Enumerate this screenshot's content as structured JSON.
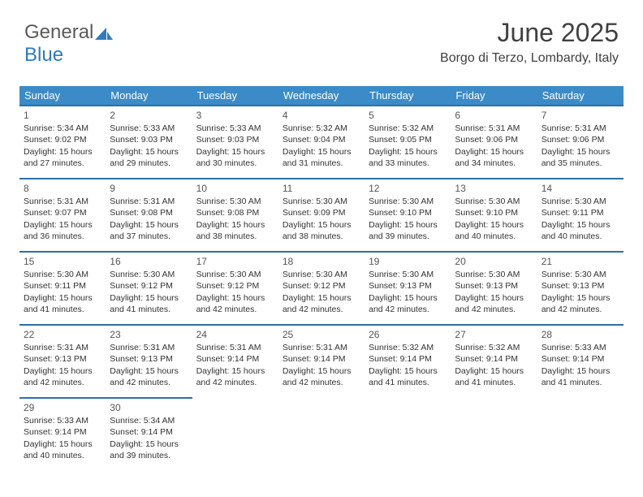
{
  "logo": {
    "part1": "General",
    "part2": "Blue"
  },
  "title": "June 2025",
  "location": "Borgo di Terzo, Lombardy, Italy",
  "colors": {
    "header_bg": "#3b8bc9",
    "header_text": "#ffffff",
    "row_border": "#2f6fa3",
    "text": "#333333",
    "logo_gray": "#5a5a5a",
    "logo_blue": "#2f7bbf",
    "background": "#ffffff"
  },
  "days_of_week": [
    "Sunday",
    "Monday",
    "Tuesday",
    "Wednesday",
    "Thursday",
    "Friday",
    "Saturday"
  ],
  "entries": {
    "1": {
      "sunrise": "5:34 AM",
      "sunset": "9:02 PM",
      "dl1": "Daylight: 15 hours",
      "dl2": "and 27 minutes."
    },
    "2": {
      "sunrise": "5:33 AM",
      "sunset": "9:03 PM",
      "dl1": "Daylight: 15 hours",
      "dl2": "and 29 minutes."
    },
    "3": {
      "sunrise": "5:33 AM",
      "sunset": "9:03 PM",
      "dl1": "Daylight: 15 hours",
      "dl2": "and 30 minutes."
    },
    "4": {
      "sunrise": "5:32 AM",
      "sunset": "9:04 PM",
      "dl1": "Daylight: 15 hours",
      "dl2": "and 31 minutes."
    },
    "5": {
      "sunrise": "5:32 AM",
      "sunset": "9:05 PM",
      "dl1": "Daylight: 15 hours",
      "dl2": "and 33 minutes."
    },
    "6": {
      "sunrise": "5:31 AM",
      "sunset": "9:06 PM",
      "dl1": "Daylight: 15 hours",
      "dl2": "and 34 minutes."
    },
    "7": {
      "sunrise": "5:31 AM",
      "sunset": "9:06 PM",
      "dl1": "Daylight: 15 hours",
      "dl2": "and 35 minutes."
    },
    "8": {
      "sunrise": "5:31 AM",
      "sunset": "9:07 PM",
      "dl1": "Daylight: 15 hours",
      "dl2": "and 36 minutes."
    },
    "9": {
      "sunrise": "5:31 AM",
      "sunset": "9:08 PM",
      "dl1": "Daylight: 15 hours",
      "dl2": "and 37 minutes."
    },
    "10": {
      "sunrise": "5:30 AM",
      "sunset": "9:08 PM",
      "dl1": "Daylight: 15 hours",
      "dl2": "and 38 minutes."
    },
    "11": {
      "sunrise": "5:30 AM",
      "sunset": "9:09 PM",
      "dl1": "Daylight: 15 hours",
      "dl2": "and 38 minutes."
    },
    "12": {
      "sunrise": "5:30 AM",
      "sunset": "9:10 PM",
      "dl1": "Daylight: 15 hours",
      "dl2": "and 39 minutes."
    },
    "13": {
      "sunrise": "5:30 AM",
      "sunset": "9:10 PM",
      "dl1": "Daylight: 15 hours",
      "dl2": "and 40 minutes."
    },
    "14": {
      "sunrise": "5:30 AM",
      "sunset": "9:11 PM",
      "dl1": "Daylight: 15 hours",
      "dl2": "and 40 minutes."
    },
    "15": {
      "sunrise": "5:30 AM",
      "sunset": "9:11 PM",
      "dl1": "Daylight: 15 hours",
      "dl2": "and 41 minutes."
    },
    "16": {
      "sunrise": "5:30 AM",
      "sunset": "9:12 PM",
      "dl1": "Daylight: 15 hours",
      "dl2": "and 41 minutes."
    },
    "17": {
      "sunrise": "5:30 AM",
      "sunset": "9:12 PM",
      "dl1": "Daylight: 15 hours",
      "dl2": "and 42 minutes."
    },
    "18": {
      "sunrise": "5:30 AM",
      "sunset": "9:12 PM",
      "dl1": "Daylight: 15 hours",
      "dl2": "and 42 minutes."
    },
    "19": {
      "sunrise": "5:30 AM",
      "sunset": "9:13 PM",
      "dl1": "Daylight: 15 hours",
      "dl2": "and 42 minutes."
    },
    "20": {
      "sunrise": "5:30 AM",
      "sunset": "9:13 PM",
      "dl1": "Daylight: 15 hours",
      "dl2": "and 42 minutes."
    },
    "21": {
      "sunrise": "5:30 AM",
      "sunset": "9:13 PM",
      "dl1": "Daylight: 15 hours",
      "dl2": "and 42 minutes."
    },
    "22": {
      "sunrise": "5:31 AM",
      "sunset": "9:13 PM",
      "dl1": "Daylight: 15 hours",
      "dl2": "and 42 minutes."
    },
    "23": {
      "sunrise": "5:31 AM",
      "sunset": "9:13 PM",
      "dl1": "Daylight: 15 hours",
      "dl2": "and 42 minutes."
    },
    "24": {
      "sunrise": "5:31 AM",
      "sunset": "9:14 PM",
      "dl1": "Daylight: 15 hours",
      "dl2": "and 42 minutes."
    },
    "25": {
      "sunrise": "5:31 AM",
      "sunset": "9:14 PM",
      "dl1": "Daylight: 15 hours",
      "dl2": "and 42 minutes."
    },
    "26": {
      "sunrise": "5:32 AM",
      "sunset": "9:14 PM",
      "dl1": "Daylight: 15 hours",
      "dl2": "and 41 minutes."
    },
    "27": {
      "sunrise": "5:32 AM",
      "sunset": "9:14 PM",
      "dl1": "Daylight: 15 hours",
      "dl2": "and 41 minutes."
    },
    "28": {
      "sunrise": "5:33 AM",
      "sunset": "9:14 PM",
      "dl1": "Daylight: 15 hours",
      "dl2": "and 41 minutes."
    },
    "29": {
      "sunrise": "5:33 AM",
      "sunset": "9:14 PM",
      "dl1": "Daylight: 15 hours",
      "dl2": "and 40 minutes."
    },
    "30": {
      "sunrise": "5:34 AM",
      "sunset": "9:14 PM",
      "dl1": "Daylight: 15 hours",
      "dl2": "and 39 minutes."
    }
  },
  "grid": [
    [
      1,
      2,
      3,
      4,
      5,
      6,
      7
    ],
    [
      8,
      9,
      10,
      11,
      12,
      13,
      14
    ],
    [
      15,
      16,
      17,
      18,
      19,
      20,
      21
    ],
    [
      22,
      23,
      24,
      25,
      26,
      27,
      28
    ],
    [
      29,
      30,
      null,
      null,
      null,
      null,
      null
    ]
  ],
  "labels": {
    "sunrise_prefix": "Sunrise: ",
    "sunset_prefix": "Sunset: "
  }
}
